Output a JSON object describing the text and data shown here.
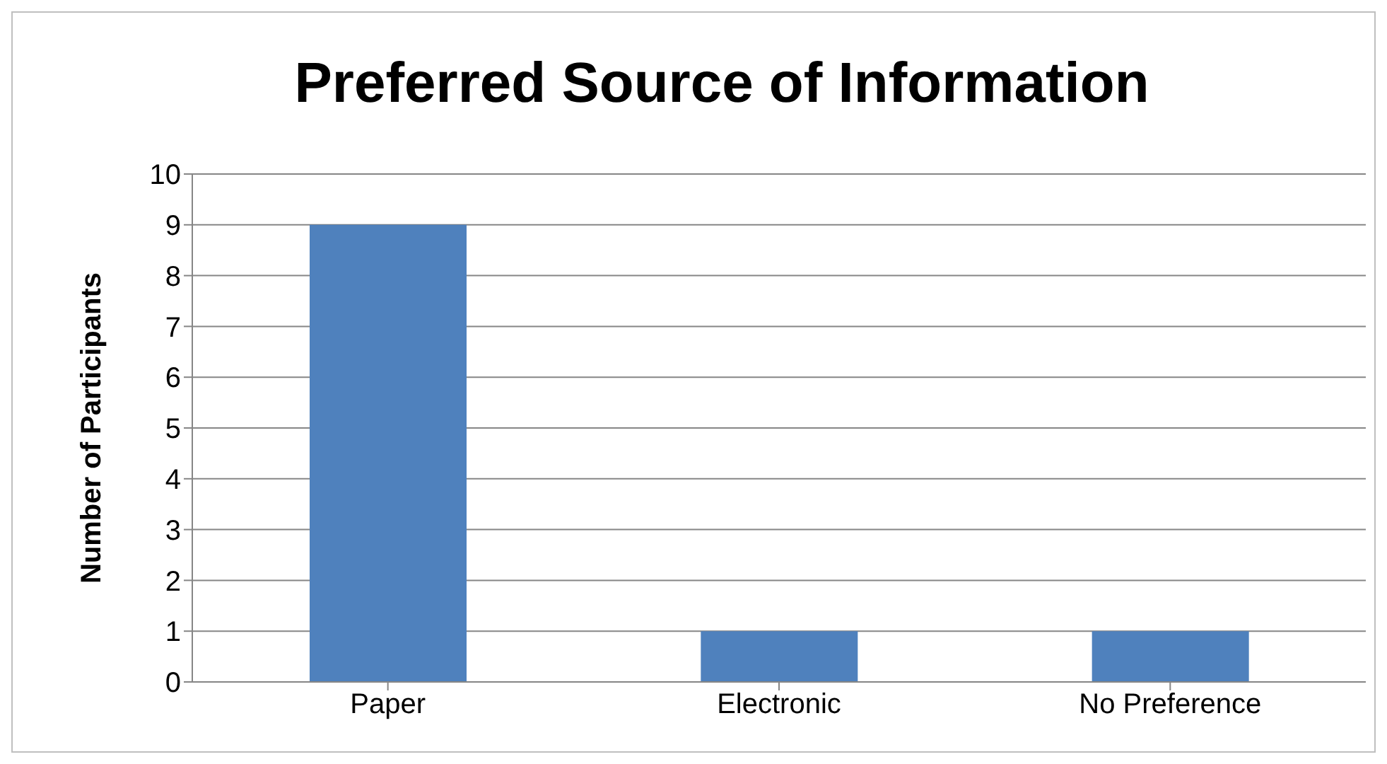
{
  "chart_data": {
    "type": "bar",
    "title": "Preferred Source of Information",
    "ylabel": "Number of Participants",
    "categories": [
      "Paper",
      "Electronic",
      "No Preference"
    ],
    "values": [
      9,
      1,
      1
    ],
    "color": "#4f81bd",
    "ylim": [
      0,
      10
    ],
    "yticks": [
      0,
      1,
      2,
      3,
      4,
      5,
      6,
      7,
      8,
      9,
      10
    ],
    "grid": "y"
  }
}
